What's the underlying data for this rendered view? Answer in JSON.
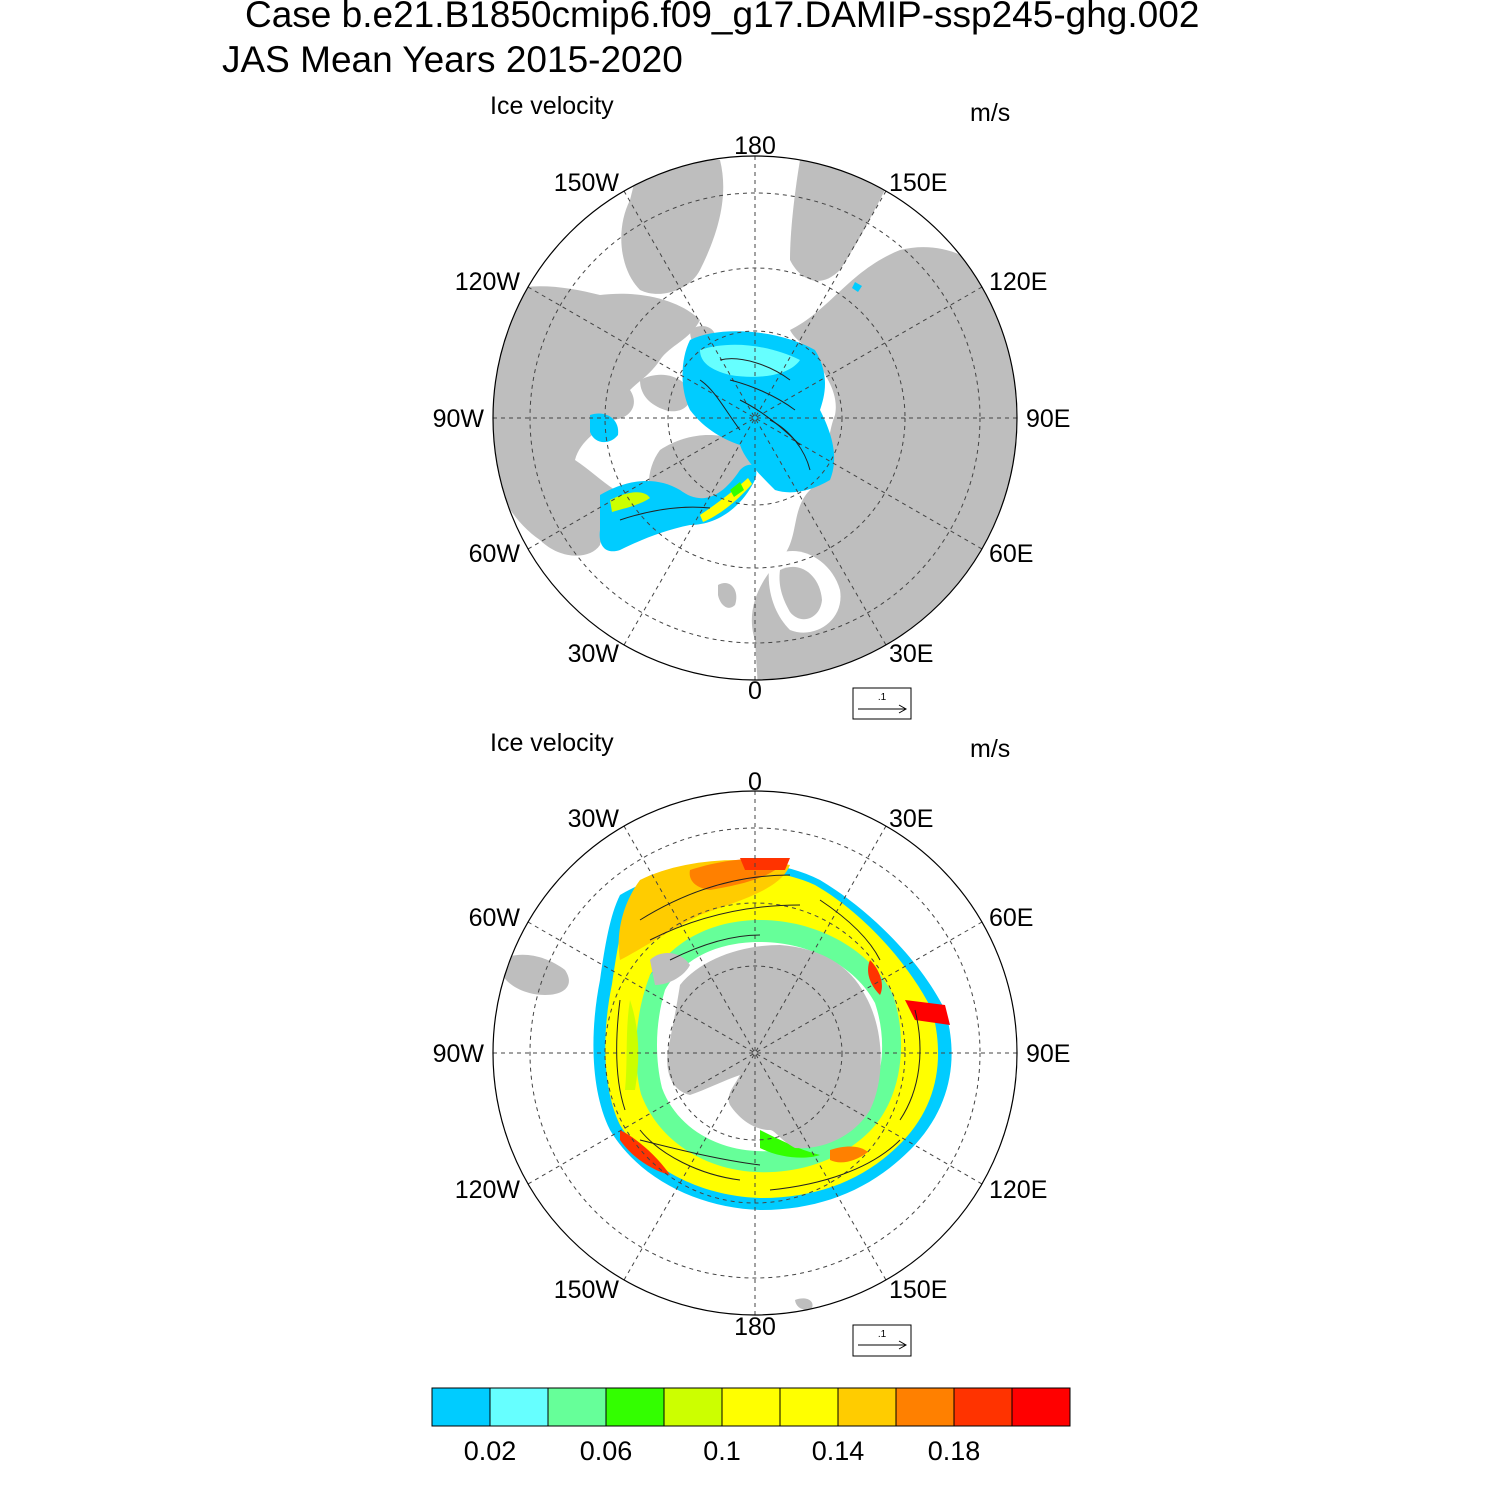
{
  "header": {
    "line1": "Case b.e21.B1850cmip6.f09_g17.DAMIP-ssp245-ghg.002",
    "line2": "JAS Mean   Years 2015-2020"
  },
  "panels": [
    {
      "id": "north",
      "hemisphere": "north-polar-stereographic",
      "title": "Ice velocity",
      "unit": "m/s",
      "lon_labels": {
        "top": "180",
        "bottom": "0",
        "left": "90W",
        "right": "90E",
        "upper_left_1": "150W",
        "upper_left_2": "120W",
        "upper_right_1": "150E",
        "upper_right_2": "120E",
        "lower_left_1": "60W",
        "lower_left_2": "30W",
        "lower_right_1": "60E",
        "lower_right_2": "30E"
      },
      "reference_vector_label": ".1"
    },
    {
      "id": "south",
      "hemisphere": "south-polar-stereographic",
      "title": "Ice velocity",
      "unit": "m/s",
      "lon_labels": {
        "top": "0",
        "bottom": "180",
        "left": "90W",
        "right": "90E",
        "upper_left_1": "30W",
        "upper_left_2": "60W",
        "upper_right_1": "30E",
        "upper_right_2": "60E",
        "lower_left_1": "120W",
        "lower_left_2": "150W",
        "lower_right_1": "120E",
        "lower_right_2": "150E"
      },
      "reference_vector_label": ".1"
    }
  ],
  "colorbar": {
    "colors": [
      "#00ccff",
      "#66ffff",
      "#66ff99",
      "#33ff00",
      "#ccff00",
      "#ffff00",
      "#ffff00",
      "#ffcc00",
      "#ff8000",
      "#ff3300",
      "#ff0000"
    ],
    "labels": [
      "0.02",
      "0.06",
      "0.1",
      "0.14",
      "0.18"
    ],
    "land_color": "#bebebe"
  }
}
